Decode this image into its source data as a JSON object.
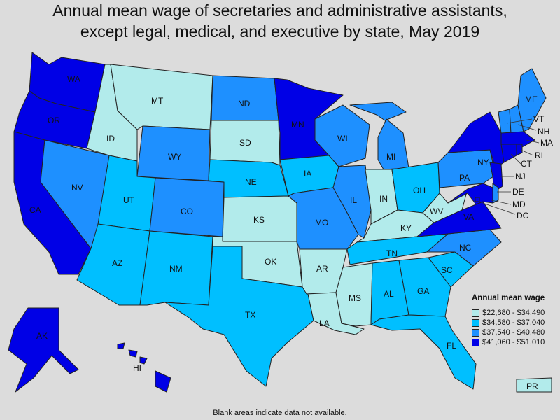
{
  "title_line1": "Annual mean wage of secretaries and administrative assistants,",
  "title_line2": "except legal, medical, and executive by state, May 2019",
  "legend": {
    "title": "Annual mean wage",
    "bins": [
      {
        "label": "$22,680 - $34,490",
        "color": "#b2ebeb"
      },
      {
        "label": "$34,580 - $37,040",
        "color": "#00bfff"
      },
      {
        "label": "$37,540 - $40,480",
        "color": "#1e90ff"
      },
      {
        "label": "$41,060 - $51,010",
        "color": "#0000e6"
      }
    ]
  },
  "footnote": "Blank areas indicate data not available.",
  "states": [
    {
      "abbr": "WA",
      "bin": 3
    },
    {
      "abbr": "OR",
      "bin": 3
    },
    {
      "abbr": "CA",
      "bin": 3
    },
    {
      "abbr": "NV",
      "bin": 2
    },
    {
      "abbr": "ID",
      "bin": 0
    },
    {
      "abbr": "MT",
      "bin": 0
    },
    {
      "abbr": "WY",
      "bin": 2
    },
    {
      "abbr": "UT",
      "bin": 1
    },
    {
      "abbr": "AZ",
      "bin": 1
    },
    {
      "abbr": "CO",
      "bin": 2
    },
    {
      "abbr": "NM",
      "bin": 1
    },
    {
      "abbr": "ND",
      "bin": 2
    },
    {
      "abbr": "SD",
      "bin": 0
    },
    {
      "abbr": "NE",
      "bin": 1
    },
    {
      "abbr": "KS",
      "bin": 0
    },
    {
      "abbr": "OK",
      "bin": 0
    },
    {
      "abbr": "TX",
      "bin": 1
    },
    {
      "abbr": "MN",
      "bin": 3
    },
    {
      "abbr": "IA",
      "bin": 1
    },
    {
      "abbr": "MO",
      "bin": 2
    },
    {
      "abbr": "AR",
      "bin": 0
    },
    {
      "abbr": "LA",
      "bin": 0
    },
    {
      "abbr": "WI",
      "bin": 2
    },
    {
      "abbr": "IL",
      "bin": 2
    },
    {
      "abbr": "MI",
      "bin": 2
    },
    {
      "abbr": "IN",
      "bin": 0
    },
    {
      "abbr": "OH",
      "bin": 1
    },
    {
      "abbr": "KY",
      "bin": 0
    },
    {
      "abbr": "TN",
      "bin": 1
    },
    {
      "abbr": "MS",
      "bin": 0
    },
    {
      "abbr": "AL",
      "bin": 1
    },
    {
      "abbr": "GA",
      "bin": 1
    },
    {
      "abbr": "FL",
      "bin": 1
    },
    {
      "abbr": "SC",
      "bin": 1
    },
    {
      "abbr": "NC",
      "bin": 2
    },
    {
      "abbr": "VA",
      "bin": 3
    },
    {
      "abbr": "WV",
      "bin": 0
    },
    {
      "abbr": "PA",
      "bin": 2
    },
    {
      "abbr": "NY",
      "bin": 3
    },
    {
      "abbr": "NJ",
      "bin": 3
    },
    {
      "abbr": "DE",
      "bin": 2
    },
    {
      "abbr": "MD",
      "bin": 3
    },
    {
      "abbr": "DC",
      "bin": 3
    },
    {
      "abbr": "VT",
      "bin": 2
    },
    {
      "abbr": "NH",
      "bin": 2
    },
    {
      "abbr": "ME",
      "bin": 2
    },
    {
      "abbr": "MA",
      "bin": 3
    },
    {
      "abbr": "CT",
      "bin": 3
    },
    {
      "abbr": "RI",
      "bin": 3
    },
    {
      "abbr": "AK",
      "bin": 3
    },
    {
      "abbr": "HI",
      "bin": 3
    },
    {
      "abbr": "PR",
      "bin": 0
    }
  ]
}
